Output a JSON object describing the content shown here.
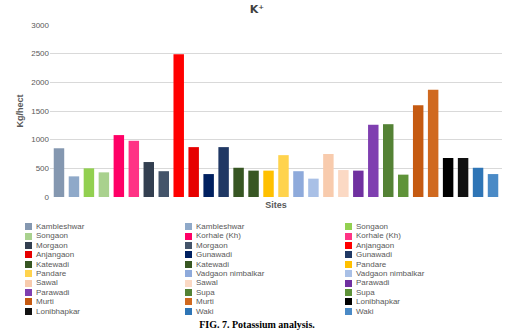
{
  "chart_data": {
    "type": "bar",
    "title": "K⁺",
    "x_label": "Sites",
    "y_label": "Kg/hect",
    "categories": [
      "Kambleshwar",
      "Kambleshwar",
      "Songaon",
      "Songaon",
      "Korhale (Kh)",
      "Korhale (Kh)",
      "Morgaon",
      "Morgaon",
      "Anjangaon",
      "Anjangaon",
      "Gunawadi",
      "Gunawadi",
      "Katewadi",
      "Katewadi",
      "Pandare",
      "Pandare",
      "Vadgaon nimbalkar",
      "Vadgaon nimbalkar",
      "Sawal",
      "Sawal",
      "Parawadi",
      "Parawadi",
      "Supa",
      "Supa",
      "Murti",
      "Murti",
      "Lonibhapkar",
      "Lonibhapkar",
      "Waki",
      "Waki"
    ],
    "values": [
      850,
      360,
      500,
      430,
      1080,
      980,
      610,
      450,
      2490,
      870,
      400,
      870,
      510,
      460,
      460,
      730,
      450,
      320,
      750,
      470,
      460,
      1260,
      1270,
      390,
      1600,
      1870,
      680,
      680,
      510,
      400
    ],
    "colors": [
      "#8497b0",
      "#8fa9c9",
      "#92d050",
      "#a9d18e",
      "#ff0066",
      "#ff3385",
      "#333f50",
      "#44546a",
      "#ff0000",
      "#e60000",
      "#002060",
      "#203864",
      "#375623",
      "#385723",
      "#ffc000",
      "#ffd34d",
      "#8eaadb",
      "#a9c0e6",
      "#f8cbad",
      "#fbd9c4",
      "#7030a0",
      "#7f3fb0",
      "#548235",
      "#5f9339",
      "#c55a11",
      "#d0691f",
      "#000000",
      "#111111",
      "#2e75b6",
      "#4a8ac6"
    ],
    "ylim": [
      0,
      3000
    ],
    "yticks": [
      0,
      500,
      1000,
      1500,
      2000,
      2500,
      3000
    ],
    "grid": true,
    "legend": "bottom",
    "tick_labels": "y"
  },
  "caption": "FIG. 7. Potassium analysis."
}
